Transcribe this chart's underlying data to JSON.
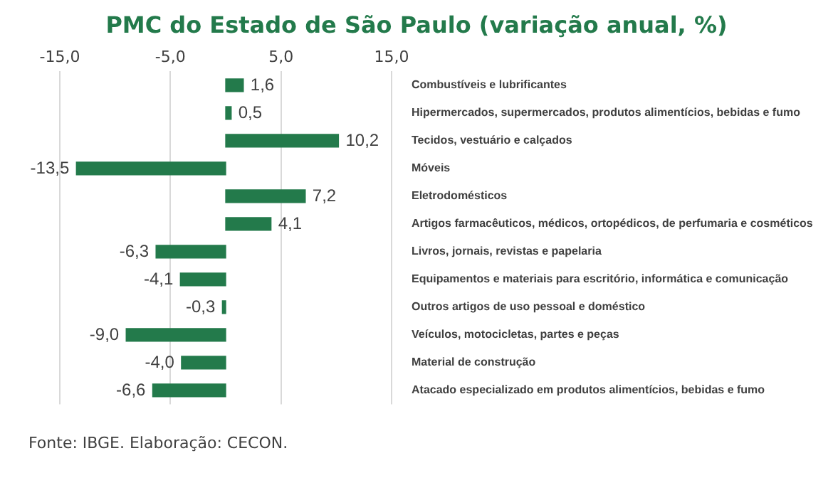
{
  "chart_data": {
    "type": "bar",
    "orientation": "horizontal",
    "title": "PMC do Estado de São Paulo (variação anual, %)",
    "categories": [
      "Combustíveis e lubrificantes",
      "Hipermercados, supermercados, produtos alimentícios, bebidas e fumo",
      "Tecidos, vestuário e calçados",
      "Móveis",
      "Eletrodomésticos",
      "Artigos farmacêuticos, médicos, ortopédicos, de perfumaria e cosméticos",
      "Livros, jornais, revistas e papelaria",
      "Equipamentos e materiais para escritório, informática e comunicação",
      "Outros artigos de uso pessoal e doméstico",
      "Veículos, motocicletas, partes e peças",
      "Material de construção",
      "Atacado especializado em produtos alimentícios, bebidas e fumo"
    ],
    "values": [
      1.6,
      0.5,
      10.2,
      -13.5,
      7.2,
      4.1,
      -6.3,
      -4.1,
      -0.3,
      -9.0,
      -4.0,
      -6.6
    ],
    "value_labels": [
      "1,6",
      "0,5",
      "10,2",
      "-13,5",
      "7,2",
      "4,1",
      "-6,3",
      "-4,1",
      "-0,3",
      "-9,0",
      "-4,0",
      "-6,6"
    ],
    "color": "#237a4b",
    "xlim": [
      -15,
      15
    ],
    "xticks": [
      {
        "value": -15,
        "label": "-15,0"
      },
      {
        "value": -5,
        "label": "-5,0"
      },
      {
        "value": 5,
        "label": "5,0"
      },
      {
        "value": 15,
        "label": "15,0"
      }
    ],
    "grid": "x",
    "legend": false,
    "annotations": [
      "Fonte: IBGE. Elaboração: CECON."
    ]
  }
}
